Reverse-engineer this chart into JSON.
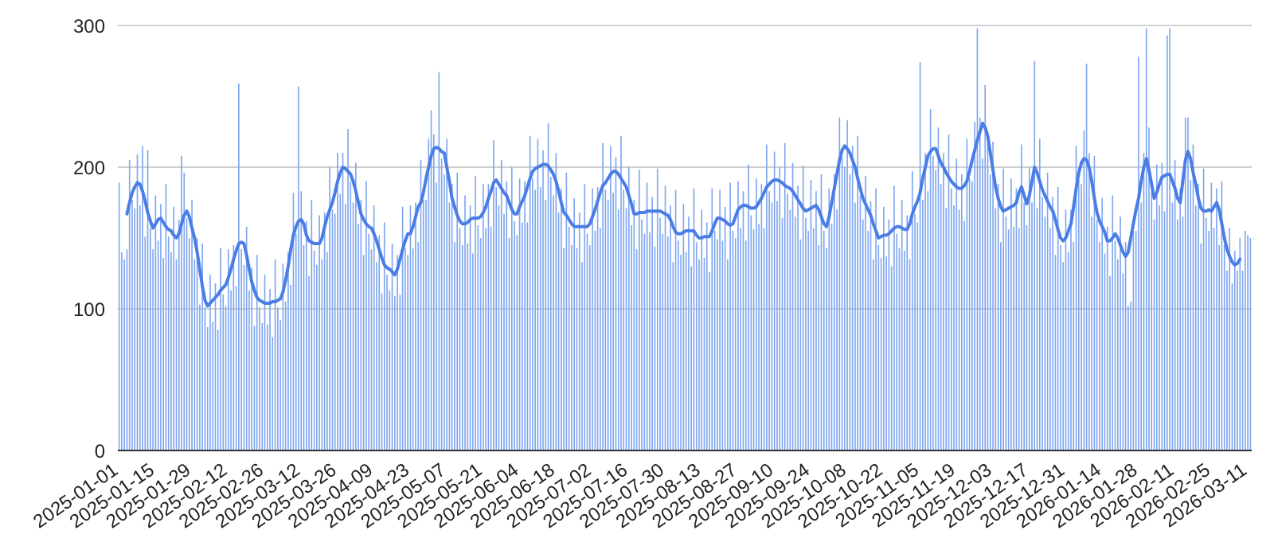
{
  "chart_data": {
    "type": "bar",
    "ylim": [
      0,
      300
    ],
    "yticks": [
      0,
      100,
      200,
      300
    ],
    "grid": "y",
    "categories": [
      "2025-01-01",
      null,
      null,
      null,
      null,
      null,
      null,
      null,
      null,
      null,
      null,
      null,
      null,
      null,
      "2025-01-15",
      null,
      null,
      null,
      null,
      null,
      null,
      null,
      null,
      null,
      null,
      null,
      null,
      null,
      "2025-01-29",
      null,
      null,
      null,
      null,
      null,
      null,
      null,
      null,
      null,
      null,
      null,
      null,
      null,
      "2025-02-12",
      null,
      null,
      null,
      null,
      null,
      null,
      null,
      null,
      null,
      null,
      null,
      null,
      null,
      "2025-02-26",
      null,
      null,
      null,
      null,
      null,
      null,
      null,
      null,
      null,
      null,
      null,
      null,
      null,
      "2025-03-12",
      null,
      null,
      null,
      null,
      null,
      null,
      null,
      null,
      null,
      null,
      null,
      null,
      null,
      "2025-03-26",
      null,
      null,
      null,
      null,
      null,
      null,
      null,
      null,
      null,
      null,
      null,
      null,
      null,
      "2025-04-09",
      null,
      null,
      null,
      null,
      null,
      null,
      null,
      null,
      null,
      null,
      null,
      null,
      null,
      "2025-04-23",
      null,
      null,
      null,
      null,
      null,
      null,
      null,
      null,
      null,
      null,
      null,
      null,
      null,
      "2025-05-07",
      null,
      null,
      null,
      null,
      null,
      null,
      null,
      null,
      null,
      null,
      null,
      null,
      null,
      "2025-05-21",
      null,
      null,
      null,
      null,
      null,
      null,
      null,
      null,
      null,
      null,
      null,
      null,
      null,
      "2025-06-04",
      null,
      null,
      null,
      null,
      null,
      null,
      null,
      null,
      null,
      null,
      null,
      null,
      null,
      "2025-06-18",
      null,
      null,
      null,
      null,
      null,
      null,
      null,
      null,
      null,
      null,
      null,
      null,
      null,
      "2025-07-02",
      null,
      null,
      null,
      null,
      null,
      null,
      null,
      null,
      null,
      null,
      null,
      null,
      null,
      "2025-07-16",
      null,
      null,
      null,
      null,
      null,
      null,
      null,
      null,
      null,
      null,
      null,
      null,
      null,
      "2025-07-30",
      null,
      null,
      null,
      null,
      null,
      null,
      null,
      null,
      null,
      null,
      null,
      null,
      null,
      "2025-08-13",
      null,
      null,
      null,
      null,
      null,
      null,
      null,
      null,
      null,
      null,
      null,
      null,
      null,
      "2025-08-27",
      null,
      null,
      null,
      null,
      null,
      null,
      null,
      null,
      null,
      null,
      null,
      null,
      null,
      "2025-09-10",
      null,
      null,
      null,
      null,
      null,
      null,
      null,
      null,
      null,
      null,
      null,
      null,
      null,
      "2025-09-24",
      null,
      null,
      null,
      null,
      null,
      null,
      null,
      null,
      null,
      null,
      null,
      null,
      null,
      "2025-10-08",
      null,
      null,
      null,
      null,
      null,
      null,
      null,
      null,
      null,
      null,
      null,
      null,
      null,
      "2025-10-22",
      null,
      null,
      null,
      null,
      null,
      null,
      null,
      null,
      null,
      null,
      null,
      null,
      null,
      "2025-11-05",
      null,
      null,
      null,
      null,
      null,
      null,
      null,
      null,
      null,
      null,
      null,
      null,
      null,
      "2025-11-19",
      null,
      null,
      null,
      null,
      null,
      null,
      null,
      null,
      null,
      null,
      null,
      null,
      null,
      "2025-12-03",
      null,
      null,
      null,
      null,
      null,
      null,
      null,
      null,
      null,
      null,
      null,
      null,
      null,
      "2025-12-17",
      null,
      null,
      null,
      null,
      null,
      null,
      null,
      null,
      null,
      null,
      null,
      null,
      null,
      "2025-12-31",
      null,
      null,
      null,
      null,
      null,
      null,
      null,
      null,
      null,
      null,
      null,
      null,
      null,
      "2026-01-14",
      null,
      null,
      null,
      null,
      null,
      null,
      null,
      null,
      null,
      null,
      null,
      null,
      null,
      "2026-01-28",
      null,
      null,
      null,
      null,
      null,
      null,
      null,
      null,
      null,
      null,
      null,
      null,
      null,
      "2026-02-11",
      null,
      null,
      null,
      null,
      null,
      null,
      null,
      null,
      null,
      null,
      null,
      null,
      null,
      "2026-02-25",
      null,
      null,
      null,
      null,
      null,
      null,
      null,
      null,
      null,
      null,
      null,
      null,
      null,
      "2026-03-11",
      null
    ],
    "series": [
      {
        "color": "#7ea6f0",
        "values": [
          189,
          140,
          135,
          142,
          205,
          177,
          171,
          209,
          173,
          215,
          151,
          212,
          157,
          142,
          180,
          148,
          174,
          136,
          188,
          151,
          140,
          172,
          135,
          163,
          208,
          196,
          164,
          150,
          177,
          135,
          150,
          103,
          146,
          101,
          87,
          124,
          91,
          118,
          85,
          143,
          110,
          102,
          142,
          113,
          145,
          116,
          259,
          142,
          131,
          158,
          113,
          129,
          88,
          138,
          101,
          90,
          124,
          89,
          114,
          80,
          135,
          101,
          92,
          132,
          105,
          140,
          117,
          182,
          153,
          257,
          183,
          145,
          162,
          123,
          177,
          141,
          131,
          166,
          135,
          168,
          140,
          200,
          170,
          167,
          210,
          181,
          210,
          174,
          227,
          190,
          175,
          203,
          160,
          177,
          138,
          190,
          153,
          142,
          173,
          133,
          152,
          111,
          161,
          124,
          113,
          146,
          109,
          138,
          110,
          172,
          143,
          138,
          173,
          143,
          175,
          147,
          205,
          177,
          177,
          220,
          240,
          223,
          189,
          267,
          206,
          195,
          220,
          175,
          188,
          147,
          196,
          157,
          145,
          180,
          146,
          173,
          139,
          194,
          159,
          150,
          188,
          157,
          188,
          158,
          219,
          186,
          173,
          205,
          167,
          190,
          150,
          200,
          162,
          152,
          192,
          161,
          190,
          161,
          222,
          192,
          184,
          220,
          186,
          212,
          177,
          231,
          193,
          180,
          210,
          168,
          185,
          143,
          196,
          158,
          145,
          178,
          143,
          168,
          133,
          188,
          153,
          145,
          185,
          155,
          186,
          157,
          217,
          184,
          177,
          215,
          182,
          207,
          170,
          222,
          184,
          171,
          200,
          159,
          177,
          142,
          198,
          163,
          153,
          189,
          154,
          179,
          144,
          199,
          164,
          153,
          187,
          151,
          173,
          133,
          184,
          148,
          138,
          174,
          140,
          165,
          130,
          185,
          147,
          135,
          170,
          136,
          161,
          126,
          185,
          155,
          149,
          184,
          148,
          172,
          135,
          189,
          155,
          150,
          190,
          157,
          183,
          148,
          202,
          166,
          156,
          192,
          160,
          188,
          157,
          216,
          183,
          175,
          211,
          176,
          200,
          164,
          217,
          181,
          170,
          203,
          165,
          187,
          149,
          201,
          164,
          155,
          191,
          157,
          183,
          145,
          195,
          155,
          143,
          185,
          160,
          195,
          170,
          235,
          207,
          200,
          233,
          195,
          215,
          175,
          222,
          180,
          163,
          194,
          155,
          176,
          135,
          185,
          145,
          136,
          172,
          137,
          163,
          130,
          187,
          153,
          143,
          177,
          141,
          166,
          135,
          197,
          167,
          161,
          274,
          177,
          210,
          183,
          241,
          208,
          198,
          228,
          188,
          210,
          171,
          223,
          185,
          173,
          206,
          170,
          195,
          162,
          220,
          192,
          190,
          232,
          298,
          235,
          206,
          258,
          217,
          195,
          218,
          171,
          188,
          147,
          199,
          165,
          156,
          192,
          158,
          185,
          157,
          216,
          175,
          159,
          200,
          175,
          275,
          171,
          220,
          179,
          165,
          196,
          157,
          179,
          138,
          186,
          145,
          133,
          170,
          140,
          170,
          147,
          215,
          191,
          188,
          226,
          273,
          210,
          165,
          208,
          163,
          147,
          178,
          139,
          158,
          123,
          180,
          148,
          135,
          165,
          125,
          147,
          102,
          105,
          155,
          155,
          278,
          175,
          210,
          298,
          228,
          183,
          163,
          202,
          173,
          203,
          169,
          293,
          298,
          175,
          205,
          163,
          185,
          165,
          235,
          235,
          191,
          216,
          173,
          188,
          146,
          199,
          164,
          155,
          189,
          157,
          185,
          145,
          190,
          145,
          127,
          157,
          118,
          141,
          127,
          150,
          127,
          155,
          152,
          150
        ]
      },
      {
        "type": "line",
        "color": "#4a7de6",
        "values": [
          null,
          null,
          null,
          167,
          175,
          182,
          186,
          189,
          188,
          183,
          176,
          168,
          162,
          157,
          160,
          163,
          164,
          161,
          158,
          156,
          155,
          152,
          150,
          153,
          160,
          166,
          169,
          165,
          157,
          150,
          140,
          128,
          116,
          106,
          102,
          104,
          106,
          108,
          110,
          113,
          115,
          117,
          122,
          128,
          135,
          141,
          146,
          147,
          146,
          138,
          128,
          119,
          113,
          108,
          106,
          105,
          104,
          104,
          104,
          105,
          105,
          106,
          107,
          112,
          120,
          130,
          142,
          152,
          158,
          162,
          163,
          160,
          152,
          148,
          147,
          146,
          146,
          146,
          150,
          158,
          165,
          170,
          175,
          182,
          190,
          196,
          200,
          199,
          197,
          195,
          190,
          183,
          175,
          167,
          163,
          160,
          158,
          157,
          153,
          148,
          142,
          136,
          131,
          129,
          128,
          126,
          124,
          128,
          135,
          142,
          148,
          153,
          153,
          158,
          165,
          172,
          175,
          182,
          192,
          200,
          208,
          213,
          214,
          213,
          211,
          210,
          200,
          190,
          178,
          172,
          166,
          162,
          160,
          160,
          161,
          163,
          164,
          164,
          164,
          165,
          168,
          172,
          178,
          183,
          189,
          191,
          188,
          185,
          182,
          180,
          175,
          170,
          167,
          167,
          172,
          176,
          180,
          186,
          192,
          197,
          199,
          200,
          201,
          202,
          202,
          201,
          198,
          195,
          190,
          183,
          175,
          168,
          166,
          163,
          160,
          158,
          158,
          158,
          158,
          158,
          158,
          160,
          165,
          170,
          176,
          182,
          187,
          189,
          192,
          195,
          197,
          197,
          195,
          192,
          189,
          186,
          180,
          174,
          167,
          167,
          168,
          168,
          168,
          169,
          169,
          169,
          169,
          169,
          169,
          168,
          167,
          166,
          163,
          158,
          154,
          153,
          153,
          154,
          155,
          155,
          155,
          155,
          152,
          150,
          150,
          151,
          151,
          151,
          155,
          160,
          164,
          164,
          163,
          162,
          160,
          159,
          160,
          165,
          170,
          172,
          173,
          173,
          172,
          171,
          171,
          172,
          175,
          178,
          182,
          186,
          188,
          190,
          191,
          191,
          190,
          189,
          187,
          186,
          185,
          183,
          180,
          177,
          174,
          171,
          169,
          170,
          171,
          172,
          173,
          170,
          165,
          160,
          158,
          165,
          175,
          185,
          195,
          205,
          212,
          215,
          213,
          210,
          205,
          200,
          192,
          185,
          178,
          174,
          170,
          166,
          160,
          155,
          150,
          151,
          152,
          152,
          153,
          155,
          157,
          158,
          158,
          157,
          156,
          156,
          160,
          167,
          172,
          176,
          182,
          192,
          200,
          208,
          211,
          213,
          213,
          208,
          203,
          200,
          196,
          193,
          190,
          188,
          186,
          185,
          185,
          187,
          190,
          197,
          205,
          212,
          219,
          225,
          231,
          228,
          222,
          210,
          198,
          186,
          178,
          172,
          169,
          170,
          171,
          172,
          173,
          175,
          182,
          186,
          180,
          174,
          180,
          190,
          200,
          196,
          190,
          184,
          180,
          176,
          172,
          169,
          163,
          156,
          150,
          148,
          150,
          155,
          160,
          172,
          185,
          196,
          203,
          206,
          205,
          200,
          190,
          178,
          168,
          162,
          158,
          154,
          148,
          148,
          150,
          153,
          150,
          145,
          140,
          137,
          140,
          150,
          160,
          170,
          178,
          190,
          200,
          206,
          198,
          188,
          178,
          182,
          188,
          193,
          194,
          195,
          195,
          190,
          185,
          178,
          175,
          190,
          205,
          211,
          206,
          196,
          188,
          178,
          171,
          169,
          169,
          170,
          169,
          172,
          175,
          170,
          160,
          150,
          142,
          137,
          133,
          131,
          132,
          135,
          null,
          null,
          null,
          null
        ]
      }
    ]
  }
}
